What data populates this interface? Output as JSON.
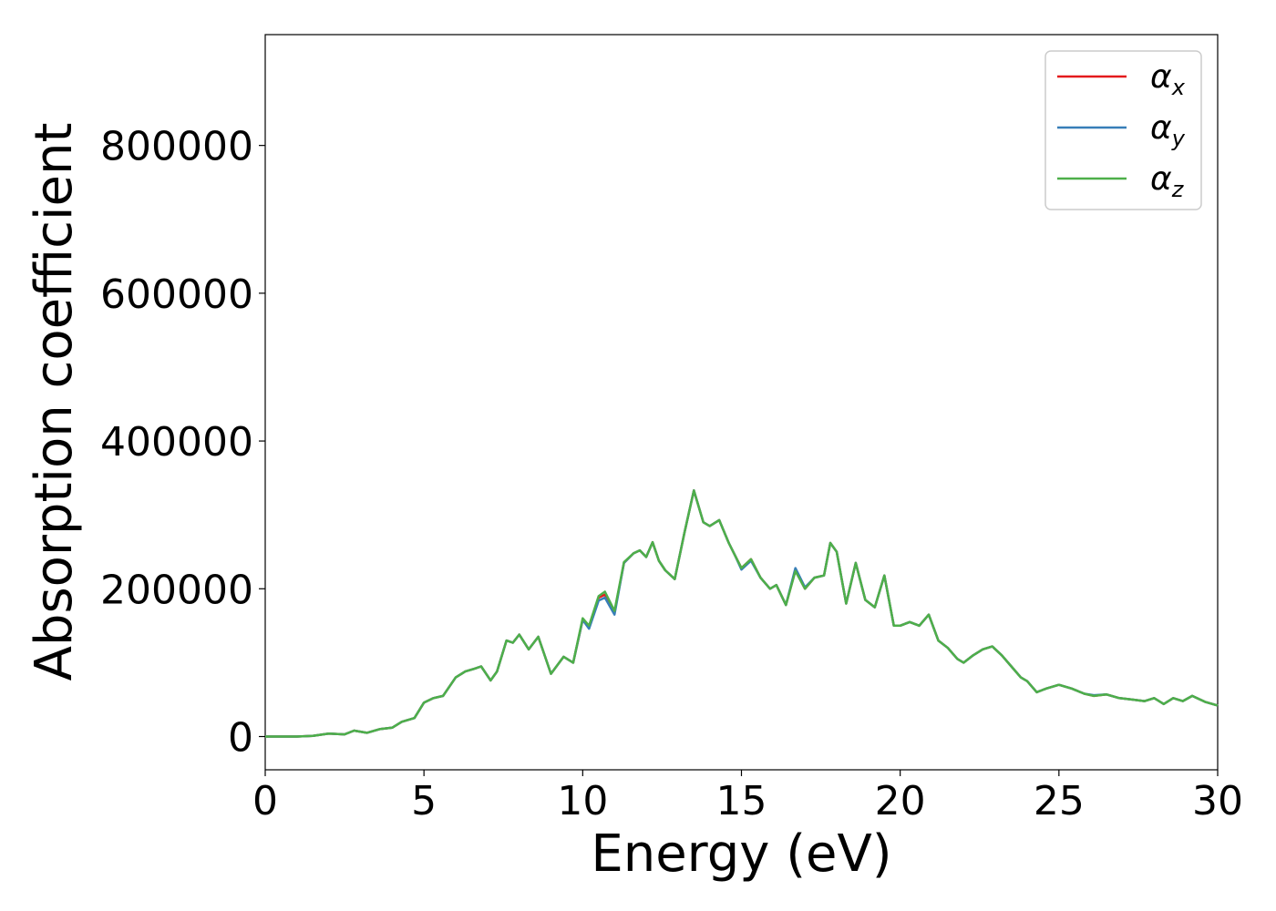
{
  "chart_data": {
    "type": "line",
    "title": "",
    "xlabel": "Energy (eV)",
    "ylabel": "Absorption coefficient",
    "xlim": [
      0,
      30
    ],
    "ylim": [
      -45000,
      950000
    ],
    "xticks": [
      0,
      5,
      10,
      15,
      20,
      25,
      30
    ],
    "xtick_labels": [
      "0",
      "5",
      "10",
      "15",
      "20",
      "25",
      "30"
    ],
    "yticks": [
      0,
      200000,
      400000,
      600000,
      800000
    ],
    "ytick_labels": [
      "0",
      "200000",
      "400000",
      "600000",
      "800000"
    ],
    "grid": false,
    "legend_position": "top-right",
    "x": [
      0,
      0.5,
      1,
      1.5,
      2,
      2.5,
      2.8,
      3.2,
      3.6,
      4,
      4.3,
      4.7,
      5,
      5.3,
      5.6,
      6,
      6.3,
      6.6,
      6.8,
      7.1,
      7.3,
      7.6,
      7.8,
      8,
      8.3,
      8.6,
      9,
      9.4,
      9.7,
      10,
      10.2,
      10.5,
      10.7,
      11,
      11.3,
      11.6,
      11.8,
      12,
      12.2,
      12.4,
      12.6,
      12.9,
      13.2,
      13.5,
      13.8,
      14,
      14.3,
      14.6,
      14.8,
      15,
      15.3,
      15.6,
      15.9,
      16.1,
      16.4,
      16.7,
      17,
      17.3,
      17.6,
      17.8,
      18,
      18.3,
      18.6,
      18.9,
      19.2,
      19.5,
      19.8,
      20,
      20.3,
      20.6,
      20.9,
      21.2,
      21.5,
      21.8,
      22,
      22.3,
      22.6,
      22.9,
      23.2,
      23.5,
      23.8,
      24,
      24.3,
      24.6,
      25,
      25.4,
      25.8,
      26.1,
      26.5,
      26.9,
      27.3,
      27.7,
      28,
      28.3,
      28.6,
      28.9,
      29.2,
      29.6,
      30
    ],
    "series": [
      {
        "name": "α",
        "name_sub": "x",
        "color": "#e41a1c",
        "values": [
          0,
          0,
          0,
          1000,
          4000,
          3000,
          8000,
          5000,
          10000,
          12000,
          20000,
          25000,
          46000,
          52000,
          55000,
          80000,
          88000,
          92000,
          95000,
          76000,
          88000,
          130000,
          127000,
          138000,
          118000,
          135000,
          85000,
          108000,
          100000,
          158000,
          148000,
          188000,
          192000,
          168000,
          235000,
          248000,
          252000,
          243000,
          263000,
          238000,
          225000,
          213000,
          275000,
          333000,
          290000,
          285000,
          293000,
          262000,
          245000,
          228000,
          240000,
          215000,
          200000,
          205000,
          178000,
          225000,
          200000,
          215000,
          218000,
          262000,
          250000,
          180000,
          235000,
          185000,
          175000,
          218000,
          150000,
          150000,
          155000,
          150000,
          165000,
          130000,
          120000,
          105000,
          100000,
          110000,
          118000,
          122000,
          110000,
          95000,
          80000,
          75000,
          60000,
          65000,
          70000,
          65000,
          58000,
          55000,
          57000,
          52000,
          50000,
          48000,
          52000,
          44000,
          52000,
          48000,
          55000,
          47000,
          42000
        ]
      },
      {
        "name": "α",
        "name_sub": "y",
        "color": "#377eb8",
        "values": [
          0,
          0,
          0,
          1000,
          4000,
          3000,
          8000,
          5000,
          10000,
          12000,
          20000,
          25000,
          46000,
          52000,
          55000,
          80000,
          88000,
          92000,
          95000,
          76000,
          88000,
          130000,
          127000,
          138000,
          118000,
          135000,
          85000,
          108000,
          100000,
          158000,
          146000,
          184000,
          188000,
          165000,
          235000,
          248000,
          252000,
          243000,
          263000,
          238000,
          225000,
          213000,
          275000,
          333000,
          290000,
          285000,
          293000,
          262000,
          245000,
          226000,
          238000,
          215000,
          200000,
          205000,
          178000,
          228000,
          202000,
          215000,
          218000,
          262000,
          250000,
          180000,
          235000,
          185000,
          175000,
          218000,
          150000,
          150000,
          155000,
          150000,
          165000,
          130000,
          120000,
          105000,
          100000,
          110000,
          118000,
          122000,
          110000,
          95000,
          80000,
          75000,
          60000,
          65000,
          70000,
          65000,
          58000,
          56000,
          57000,
          52000,
          50000,
          48000,
          52000,
          44000,
          52000,
          48000,
          55000,
          47000,
          42000
        ]
      },
      {
        "name": "α",
        "name_sub": "z",
        "color": "#4daf4a",
        "values": [
          0,
          0,
          0,
          1000,
          4000,
          3000,
          8000,
          5000,
          10000,
          12000,
          20000,
          25000,
          46000,
          52000,
          55000,
          80000,
          88000,
          92000,
          95000,
          76000,
          88000,
          130000,
          127000,
          138000,
          118000,
          135000,
          85000,
          108000,
          100000,
          160000,
          150000,
          190000,
          196000,
          170000,
          236000,
          248000,
          252000,
          243000,
          263000,
          238000,
          225000,
          213000,
          275000,
          333000,
          290000,
          285000,
          293000,
          262000,
          245000,
          228000,
          240000,
          215000,
          200000,
          205000,
          178000,
          224000,
          200000,
          215000,
          218000,
          262000,
          250000,
          180000,
          235000,
          185000,
          175000,
          218000,
          150000,
          150000,
          155000,
          150000,
          165000,
          130000,
          120000,
          105000,
          100000,
          110000,
          118000,
          122000,
          110000,
          95000,
          80000,
          75000,
          60000,
          65000,
          70000,
          65000,
          58000,
          55000,
          57000,
          52000,
          50000,
          48000,
          52000,
          44000,
          52000,
          48000,
          55000,
          47000,
          42000
        ]
      }
    ]
  }
}
